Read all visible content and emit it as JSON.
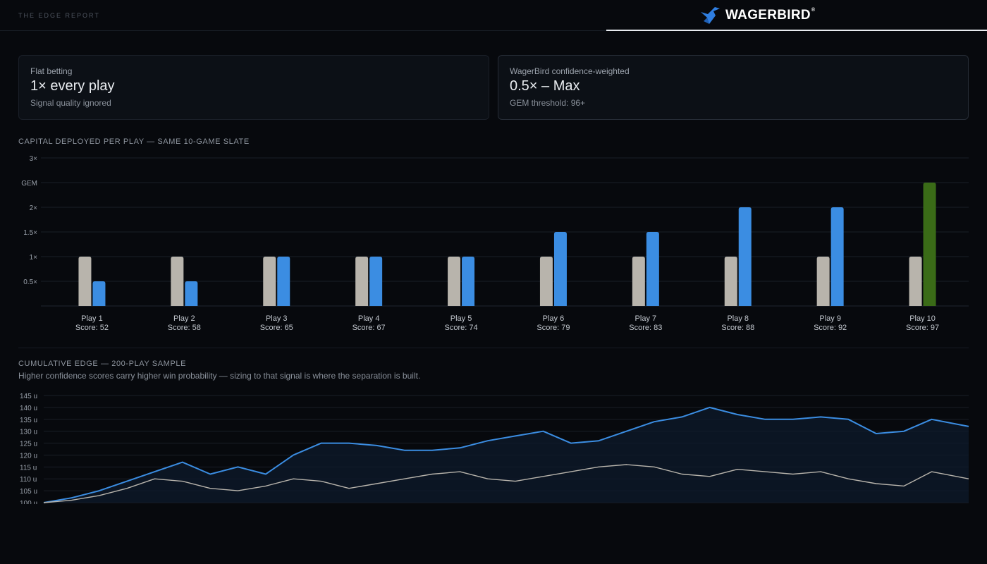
{
  "header": {
    "report_label": "THE EDGE REPORT",
    "brand_name": "WAGERBIRD",
    "brand_mark": "®",
    "brand_logo_icon": "bird-icon"
  },
  "cards": {
    "flat": {
      "label": "Flat betting",
      "value": "1× every play",
      "note": "Signal quality ignored"
    },
    "weighted": {
      "label": "WagerBird confidence-weighted",
      "value": "0.5× – Max",
      "note": "GEM threshold: 96+"
    }
  },
  "colors": {
    "flat": "#b8b4ac",
    "weighted": "#3b8de2",
    "gem": "#3a6b17",
    "grid": "#1a1f27",
    "axis_text": "#9aa1ab"
  },
  "chart_data": [
    {
      "type": "bar",
      "title": "CAPITAL DEPLOYED PER PLAY — SAME 10-GAME SLATE",
      "categories": [
        "Play 1",
        "Play 2",
        "Play 3",
        "Play 4",
        "Play 5",
        "Play 6",
        "Play 7",
        "Play 8",
        "Play 9",
        "Play 10"
      ],
      "category_sublabels": [
        "Score: 52",
        "Score: 58",
        "Score: 65",
        "Score: 67",
        "Score: 74",
        "Score: 79",
        "Score: 83",
        "Score: 88",
        "Score: 92",
        "Score: 97"
      ],
      "ylim": [
        0,
        3
      ],
      "yticks": [
        {
          "value": 0.5,
          "label": "0.5×"
        },
        {
          "value": 1,
          "label": "1×"
        },
        {
          "value": 1.5,
          "label": "1.5×"
        },
        {
          "value": 2,
          "label": "2×"
        },
        {
          "value": 2.5,
          "label": "GEM"
        },
        {
          "value": 3,
          "label": "3×"
        }
      ],
      "series": [
        {
          "values": [
            1,
            1,
            1,
            1,
            1,
            1,
            1,
            1,
            1,
            1
          ],
          "color": "#b8b4ac"
        },
        {
          "values": [
            0.5,
            0.5,
            1,
            1,
            1,
            1.5,
            1.5,
            2,
            2,
            2.5
          ],
          "color": "#3b8de2",
          "highlight_last_color": "#3a6b17"
        }
      ],
      "grid": true
    },
    {
      "type": "area",
      "title": "CUMULATIVE EDGE — 200-PLAY SAMPLE",
      "subtitle": "Higher confidence scores carry higher win probability — sizing to that signal is where the separation is built.",
      "ylim": [
        100,
        145
      ],
      "yticks": [
        {
          "value": 100,
          "label": "100 u"
        },
        {
          "value": 105,
          "label": "105 u"
        },
        {
          "value": 110,
          "label": "110 u"
        },
        {
          "value": 115,
          "label": "115 u"
        },
        {
          "value": 120,
          "label": "120 u"
        },
        {
          "value": 125,
          "label": "125 u"
        },
        {
          "value": 130,
          "label": "130 u"
        },
        {
          "value": 135,
          "label": "135 u"
        },
        {
          "value": 140,
          "label": "140 u"
        },
        {
          "value": 145,
          "label": "145 u"
        }
      ],
      "x": [
        0,
        6,
        12,
        18,
        24,
        30,
        36,
        42,
        48,
        54,
        60,
        66,
        72,
        78,
        84,
        90,
        96,
        102,
        108,
        114,
        120,
        126,
        132,
        138,
        144,
        150,
        156,
        162,
        168,
        174,
        180,
        186,
        192,
        200
      ],
      "series": [
        {
          "color": "#3b8de2",
          "fill": true,
          "values": [
            100,
            102,
            105,
            109,
            113,
            117,
            112,
            115,
            112,
            120,
            125,
            125,
            124,
            122,
            122,
            123,
            126,
            128,
            130,
            125,
            126,
            130,
            134,
            136,
            140,
            137,
            135,
            135,
            136,
            135,
            129,
            130,
            135,
            132
          ]
        },
        {
          "color": "#b8b4ac",
          "fill": false,
          "values": [
            100,
            101,
            103,
            106,
            110,
            109,
            106,
            105,
            107,
            110,
            109,
            106,
            108,
            110,
            112,
            113,
            110,
            109,
            111,
            113,
            115,
            116,
            115,
            112,
            111,
            114,
            113,
            112,
            113,
            110,
            108,
            107,
            113,
            110
          ]
        }
      ],
      "grid": true
    }
  ]
}
